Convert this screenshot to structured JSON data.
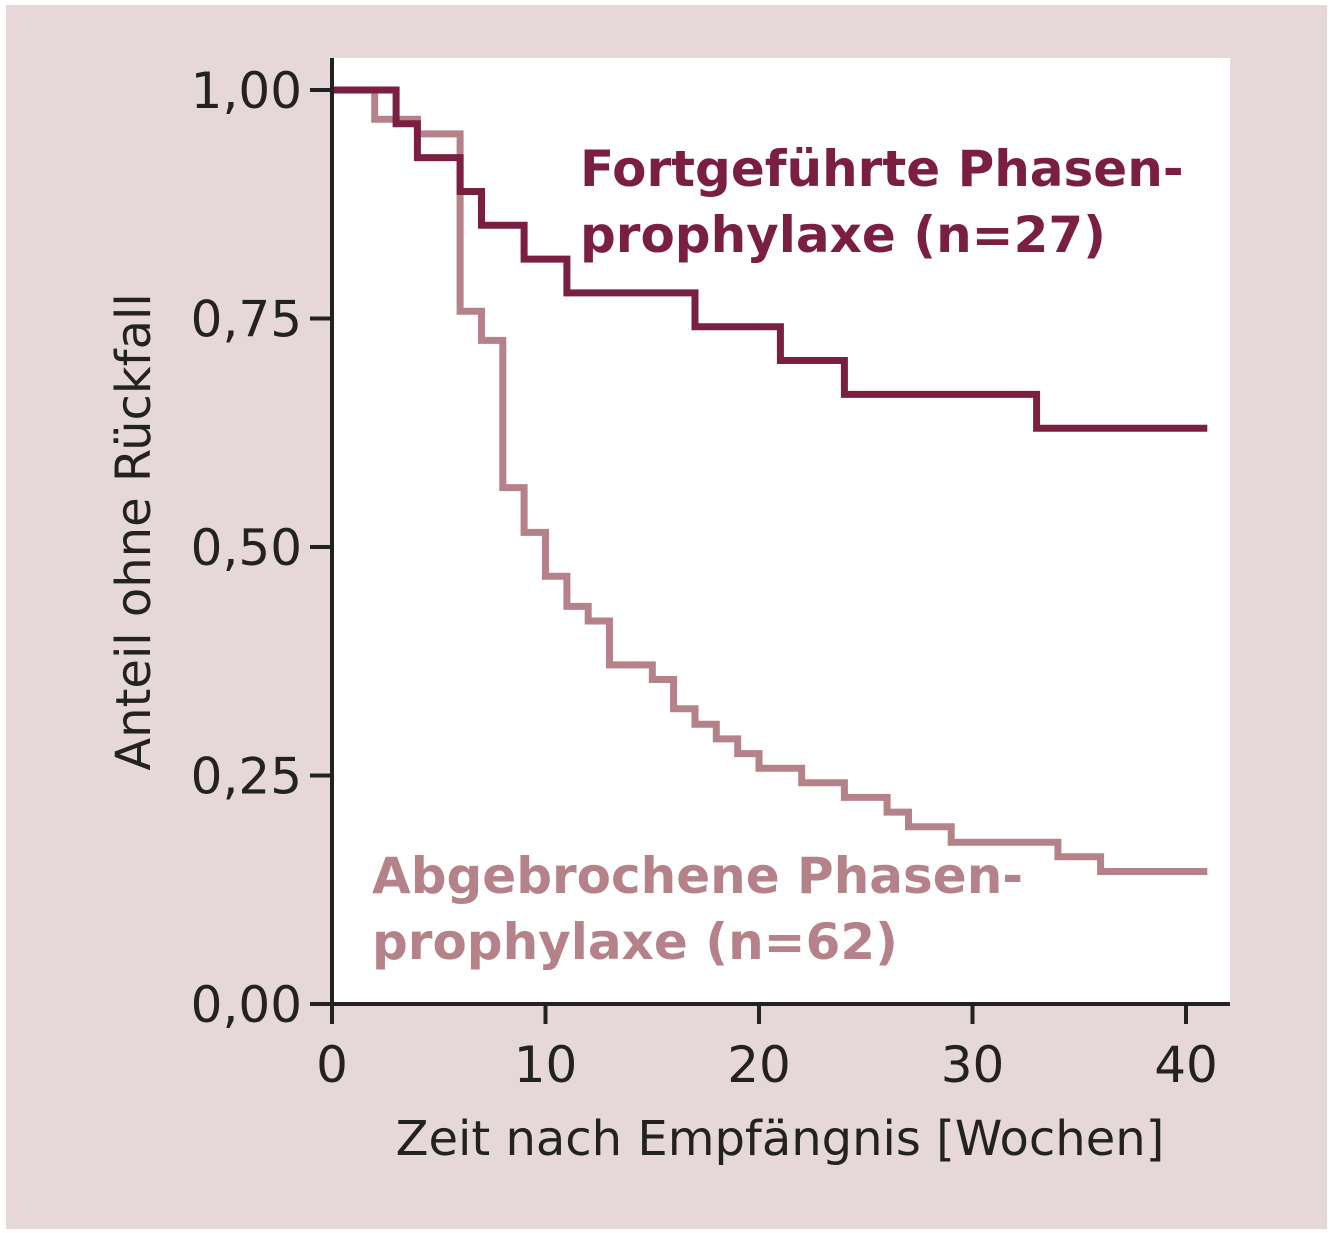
{
  "chart_data": {
    "type": "line",
    "step": true,
    "title": "",
    "xlabel": "Zeit nach Empfängnis [Wochen]",
    "ylabel": "Anteil ohne Rückfall",
    "xlim": [
      0,
      42
    ],
    "ylim": [
      0,
      1.02
    ],
    "x_ticks": [
      0,
      10,
      20,
      30,
      40
    ],
    "x_tick_labels": [
      "0",
      "10",
      "20",
      "30",
      "40"
    ],
    "y_ticks": [
      0,
      0.25,
      0.5,
      0.75,
      1.0
    ],
    "y_tick_labels": [
      "0,00",
      "0,25",
      "0,50",
      "0,75",
      "1,00"
    ],
    "grid": false,
    "legend": "inline labels",
    "colors": {
      "background": "#e6d8d8",
      "plot_area": "#ffffff",
      "axis": "#222222"
    },
    "series": [
      {
        "name_lines": [
          "Fortgeführte Phasen-",
          "prophylaxe (n=27)"
        ],
        "color": "#7a1f42",
        "x": [
          0,
          3,
          4,
          6,
          7,
          9,
          11,
          17,
          21,
          24,
          33,
          41
        ],
        "y": [
          1.0,
          0.963,
          0.926,
          0.889,
          0.852,
          0.815,
          0.778,
          0.741,
          0.704,
          0.667,
          0.63,
          0.63
        ]
      },
      {
        "name_lines": [
          "Abgebrochene Phasen-",
          "prophylaxe (n=62)"
        ],
        "color": "#b48288",
        "x": [
          0,
          2,
          4,
          6,
          7,
          8,
          9,
          10,
          11,
          12,
          13,
          15,
          16,
          17,
          18,
          19,
          20,
          22,
          24,
          26,
          27,
          29,
          34,
          36,
          41
        ],
        "y": [
          1.0,
          0.968,
          0.952,
          0.758,
          0.726,
          0.565,
          0.516,
          0.468,
          0.435,
          0.419,
          0.371,
          0.355,
          0.323,
          0.306,
          0.29,
          0.274,
          0.258,
          0.242,
          0.226,
          0.21,
          0.194,
          0.177,
          0.161,
          0.145,
          0.145
        ]
      }
    ]
  }
}
